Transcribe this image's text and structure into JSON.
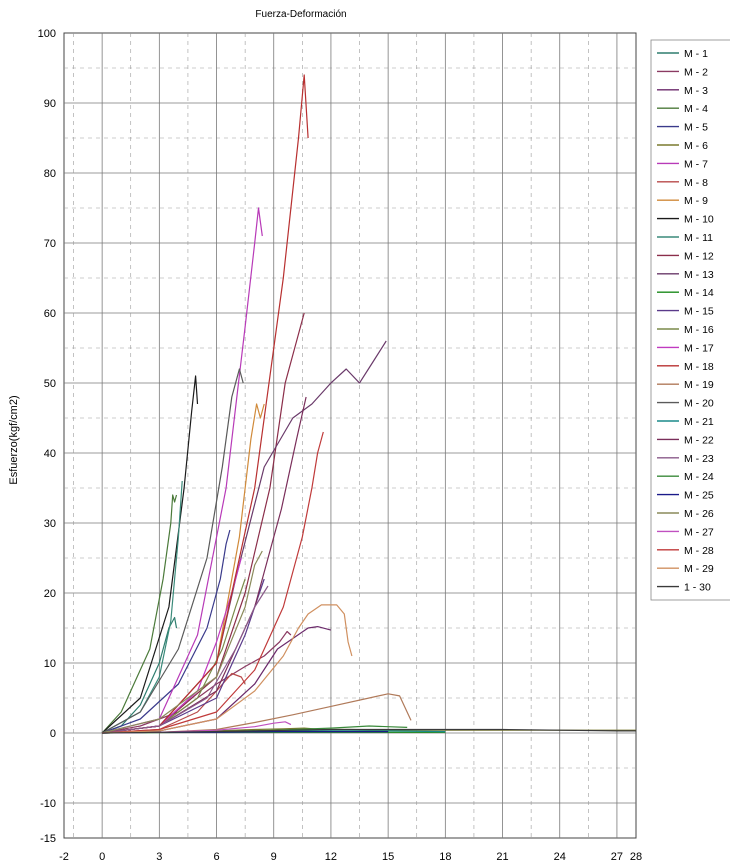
{
  "chart_data": {
    "type": "line",
    "title": "Fuerza-Deformación",
    "xlabel": "",
    "ylabel": "Esfuerzo(kgf/cm2)",
    "xlim": [
      -2,
      28
    ],
    "ylim": [
      -15,
      100
    ],
    "x_ticks": [
      "-2",
      "0",
      "3",
      "6",
      "9",
      "12",
      "15",
      "18",
      "21",
      "24",
      "27",
      "28"
    ],
    "x_tick_values": [
      -2,
      0,
      3,
      6,
      9,
      12,
      15,
      18,
      21,
      24,
      27,
      28
    ],
    "y_ticks": [
      "-15",
      "-10",
      "0",
      "10",
      "20",
      "30",
      "40",
      "50",
      "60",
      "70",
      "80",
      "90",
      "100"
    ],
    "y_tick_values": [
      -15,
      -10,
      0,
      10,
      20,
      30,
      40,
      50,
      60,
      70,
      80,
      90,
      100
    ],
    "grid": true,
    "legend_position": "right",
    "series": [
      {
        "name": "M - 1",
        "color": "#2e7d6e",
        "x": [
          0,
          1,
          2,
          3,
          3.5,
          3.8,
          3.9
        ],
        "y": [
          0,
          1,
          4,
          10,
          15,
          16.5,
          15
        ]
      },
      {
        "name": "M - 2",
        "color": "#8b3a62",
        "x": [
          0,
          2,
          4,
          6,
          7.5,
          8.5,
          9.3,
          9.7,
          9.9
        ],
        "y": [
          0,
          1,
          3,
          7,
          9.5,
          11,
          13,
          14.5,
          14
        ]
      },
      {
        "name": "M - 3",
        "color": "#6b2a6b",
        "x": [
          0,
          3,
          6,
          8,
          9.2,
          10,
          10.8,
          11.3,
          12
        ],
        "y": [
          0,
          0.3,
          2,
          7,
          12,
          13.5,
          15,
          15.2,
          14.7
        ]
      },
      {
        "name": "M - 4",
        "color": "#4b7a3a",
        "x": [
          0,
          1,
          2.5,
          3.2,
          3.6,
          3.7,
          3.8,
          3.9
        ],
        "y": [
          0,
          3,
          12,
          22,
          30,
          34,
          33,
          34
        ]
      },
      {
        "name": "M - 5",
        "color": "#3a3a8b",
        "x": [
          0,
          2,
          4,
          5.5,
          6.2,
          6.5,
          6.7
        ],
        "y": [
          0,
          2,
          7,
          15,
          22,
          27,
          29
        ]
      },
      {
        "name": "M - 6",
        "color": "#7a7a2e",
        "x": [
          0,
          3,
          6,
          8,
          9.5,
          10.6,
          11.5,
          13,
          15,
          18,
          21,
          24,
          27,
          28
        ],
        "y": [
          0,
          0.1,
          0.3,
          0.5,
          0.6,
          0.7,
          0.5,
          0.5,
          0.4,
          0.4,
          0.4,
          0.4,
          0.4,
          0.4
        ]
      },
      {
        "name": "M - 7",
        "color": "#b83ab8",
        "x": [
          0,
          3,
          5,
          6.5,
          7.5,
          8,
          8.2,
          8.4
        ],
        "y": [
          0,
          2,
          14,
          35,
          58,
          70,
          75,
          71
        ]
      },
      {
        "name": "M - 8",
        "color": "#b84a4a",
        "x": [
          0,
          3,
          5,
          6,
          6.8,
          7.3,
          7.5
        ],
        "y": [
          0,
          0.5,
          3,
          6,
          8.5,
          8,
          7
        ]
      },
      {
        "name": "M - 9",
        "color": "#d08a3a",
        "x": [
          0,
          3,
          6,
          7.2,
          7.8,
          8.1,
          8.3,
          8.5
        ],
        "y": [
          0,
          1,
          10,
          28,
          42,
          47,
          45,
          47
        ]
      },
      {
        "name": "M - 10",
        "color": "#1a1a1a",
        "x": [
          0,
          2,
          3.5,
          4.3,
          4.7,
          4.9,
          5
        ],
        "y": [
          0,
          5,
          18,
          35,
          46,
          51,
          47
        ]
      },
      {
        "name": "M - 11",
        "color": "#3a8a7a",
        "x": [
          0,
          2,
          3,
          3.6,
          4,
          4.2
        ],
        "y": [
          0,
          3,
          8,
          16,
          28,
          36
        ]
      },
      {
        "name": "M - 12",
        "color": "#8b2e4a",
        "x": [
          0,
          3,
          6,
          7.5,
          8.8,
          9.6,
          10.1,
          10.6
        ],
        "y": [
          0,
          1,
          8,
          20,
          35,
          50,
          55,
          60
        ]
      },
      {
        "name": "M - 13",
        "color": "#6a3a6a",
        "x": [
          0,
          3,
          6,
          7,
          8.5,
          10,
          11,
          12,
          12.8,
          13.5,
          14.2,
          14.9
        ],
        "y": [
          0,
          1,
          10,
          22,
          38,
          45,
          47,
          50,
          52,
          50,
          53,
          56
        ]
      },
      {
        "name": "M - 14",
        "color": "#1a8a1a",
        "x": [
          0,
          5,
          10,
          15,
          18
        ],
        "y": [
          0,
          0.1,
          0.1,
          0.1,
          0.1
        ]
      },
      {
        "name": "M - 15",
        "color": "#5a3a8a",
        "x": [
          0,
          3,
          6,
          7.5,
          8.5
        ],
        "y": [
          0,
          1,
          5,
          14,
          22
        ]
      },
      {
        "name": "M - 16",
        "color": "#7a8a4a",
        "x": [
          0,
          3,
          5,
          6.3,
          7,
          7.5
        ],
        "y": [
          0,
          1,
          5,
          12,
          18,
          22
        ]
      },
      {
        "name": "M - 17",
        "color": "#c03ac0",
        "x": [
          0,
          3,
          5,
          6,
          6.8,
          7.3
        ],
        "y": [
          0,
          1,
          6,
          13,
          20,
          25
        ]
      },
      {
        "name": "M - 18",
        "color": "#b83030",
        "x": [
          0,
          3,
          6,
          8,
          9.5,
          10.3,
          10.6,
          10.8
        ],
        "y": [
          0,
          1,
          10,
          35,
          65,
          85,
          94,
          85
        ]
      },
      {
        "name": "M - 19",
        "color": "#b07a5a",
        "x": [
          0,
          3,
          6,
          8,
          10,
          12,
          14,
          15,
          15.6,
          16.2
        ],
        "y": [
          0,
          0.1,
          0.5,
          1.5,
          2.6,
          3.8,
          5,
          5.6,
          5.3,
          1.8
        ]
      },
      {
        "name": "M - 20",
        "color": "#5a5a5a",
        "x": [
          0,
          2,
          4,
          5.5,
          6.3,
          6.8,
          7.2,
          7.4
        ],
        "y": [
          0,
          3,
          12,
          25,
          38,
          48,
          52,
          50
        ]
      },
      {
        "name": "M - 21",
        "color": "#1a8a8a",
        "x": [
          0,
          3,
          6,
          9,
          12,
          15,
          18
        ],
        "y": [
          0,
          0.1,
          0.2,
          0.3,
          0.3,
          0.3,
          0.2
        ]
      },
      {
        "name": "M - 22",
        "color": "#7a2e5a",
        "x": [
          0,
          3,
          6,
          8,
          9.4,
          10.2,
          10.7
        ],
        "y": [
          0,
          1,
          6,
          18,
          32,
          42,
          48
        ]
      },
      {
        "name": "M - 23",
        "color": "#8a5a8a",
        "x": [
          0,
          3,
          5.5,
          7,
          8,
          8.7
        ],
        "y": [
          0,
          1,
          5,
          12,
          18,
          21
        ]
      },
      {
        "name": "M - 24",
        "color": "#3a8a3a",
        "x": [
          0,
          3,
          6,
          9,
          12,
          14,
          15,
          16
        ],
        "y": [
          0,
          0.1,
          0.2,
          0.4,
          0.7,
          1,
          0.9,
          0.8
        ]
      },
      {
        "name": "M - 25",
        "color": "#1a1a8a",
        "x": [
          0,
          3,
          6,
          9,
          12,
          15
        ],
        "y": [
          0,
          0.1,
          0.1,
          0.2,
          0.2,
          0.2
        ]
      },
      {
        "name": "M - 26",
        "color": "#8a8a5a",
        "x": [
          0,
          3,
          6,
          7.5,
          8,
          8.4
        ],
        "y": [
          0,
          2,
          8,
          18,
          24,
          26
        ]
      },
      {
        "name": "M - 27",
        "color": "#c050c0",
        "x": [
          0,
          3,
          6,
          8,
          9,
          9.6,
          9.9
        ],
        "y": [
          0,
          0.1,
          0.4,
          0.9,
          1.4,
          1.6,
          1.2
        ]
      },
      {
        "name": "M - 28",
        "color": "#c03a3a",
        "x": [
          0,
          3,
          6,
          8,
          9.5,
          10.5,
          11,
          11.3,
          11.6
        ],
        "y": [
          0,
          0.5,
          3,
          9,
          18,
          28,
          35,
          40,
          43
        ]
      },
      {
        "name": "M - 29",
        "color": "#d09060",
        "x": [
          0,
          3,
          6,
          8,
          9.5,
          10.3,
          10.8,
          11.5,
          12.3,
          12.7,
          12.9,
          13.1
        ],
        "y": [
          0,
          0.3,
          2,
          6,
          11,
          15,
          17,
          18.3,
          18.3,
          17,
          13,
          11
        ]
      },
      {
        "name": "1 - 30",
        "color": "#3a3a3a",
        "x": [
          0,
          3,
          6,
          8,
          10,
          12,
          15,
          18,
          21,
          24,
          27,
          28
        ],
        "y": [
          0,
          0.1,
          0.2,
          0.3,
          0.4,
          0.5,
          0.5,
          0.5,
          0.5,
          0.4,
          0.3,
          0.3
        ]
      }
    ]
  }
}
